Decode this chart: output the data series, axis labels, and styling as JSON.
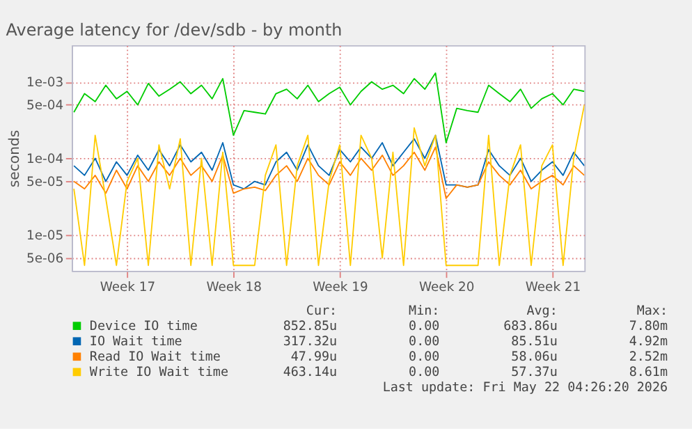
{
  "chart_data": {
    "type": "line",
    "title": "Average latency for /dev/sdb - by month",
    "ylabel": "seconds",
    "log": "y",
    "grid": true,
    "legend": "bottom",
    "categories": [
      null,
      null,
      null,
      null,
      null,
      "Week 17",
      null,
      null,
      null,
      null,
      null,
      null,
      null,
      null,
      null,
      "Week 18",
      null,
      null,
      null,
      null,
      null,
      null,
      null,
      null,
      null,
      "Week 19",
      null,
      null,
      null,
      null,
      null,
      null,
      null,
      null,
      null,
      "Week 20",
      null,
      null,
      null,
      null,
      null,
      null,
      null,
      null,
      null,
      "Week 21",
      null,
      null,
      null
    ],
    "ylim": [
      3.4e-06,
      0.003
    ],
    "yticks": [
      {
        "value": 5e-06,
        "label": "5e-06"
      },
      {
        "value": 1e-05,
        "label": "1e-05"
      },
      {
        "value": 5e-05,
        "label": "5e-05"
      },
      {
        "value": 0.0001,
        "label": "1e-04"
      },
      {
        "value": 0.0005,
        "label": "5e-04"
      },
      {
        "value": 0.001,
        "label": "1e-03"
      }
    ],
    "series": [
      {
        "name": "Device IO time",
        "color": "#00cc00",
        "values": [
          0.0004,
          0.0007,
          0.00055,
          0.0009,
          0.0006,
          0.00075,
          0.0005,
          0.00095,
          0.00065,
          0.0008,
          0.001,
          0.0007,
          0.0009,
          0.0006,
          0.0011,
          0.0002,
          0.00042,
          0.0004,
          0.00038,
          0.0007,
          0.0008,
          0.0006,
          0.0009,
          0.00055,
          0.0007,
          0.00085,
          0.0005,
          0.00075,
          0.001,
          0.0008,
          0.0009,
          0.0007,
          0.0011,
          0.0008,
          0.0013,
          0.00016,
          0.00045,
          0.00042,
          0.0004,
          0.0009,
          0.0007,
          0.00055,
          0.0008,
          0.00045,
          0.0006,
          0.0007,
          0.0005,
          0.0008,
          0.00075
        ]
      },
      {
        "name": "IO Wait time",
        "color": "#0066b3",
        "values": [
          8e-05,
          6e-05,
          0.0001,
          5e-05,
          9e-05,
          6e-05,
          0.00011,
          7e-05,
          0.00013,
          8e-05,
          0.00015,
          9e-05,
          0.00012,
          7e-05,
          0.00016,
          4.5e-05,
          4e-05,
          5e-05,
          4.5e-05,
          9e-05,
          0.00012,
          7e-05,
          0.00015,
          8e-05,
          6e-05,
          0.00013,
          9e-05,
          0.00014,
          0.0001,
          0.00016,
          8e-05,
          0.00012,
          0.00018,
          0.0001,
          0.0002,
          4.5e-05,
          4.5e-05,
          4.2e-05,
          4.5e-05,
          0.00013,
          8e-05,
          6e-05,
          0.0001,
          5e-05,
          7e-05,
          9e-05,
          6e-05,
          0.00012,
          8e-05
        ]
      },
      {
        "name": "Read IO Wait time",
        "color": "#ff8000",
        "values": [
          5e-05,
          4e-05,
          6e-05,
          3.5e-05,
          7e-05,
          4e-05,
          8e-05,
          5e-05,
          9e-05,
          6e-05,
          0.0001,
          6e-05,
          8e-05,
          5e-05,
          0.00011,
          3.5e-05,
          4e-05,
          4.2e-05,
          3.8e-05,
          6e-05,
          8e-05,
          5e-05,
          0.0001,
          6e-05,
          4.5e-05,
          9e-05,
          6e-05,
          0.0001,
          7e-05,
          0.00011,
          6e-05,
          8e-05,
          0.00012,
          7e-05,
          0.00014,
          3e-05,
          4.5e-05,
          4.2e-05,
          4.5e-05,
          9e-05,
          6e-05,
          4.5e-05,
          7e-05,
          4e-05,
          5e-05,
          6e-05,
          4.5e-05,
          8e-05,
          6e-05
        ]
      },
      {
        "name": "Write IO Wait time",
        "color": "#ffcc00",
        "values": [
          4e-05,
          4e-06,
          0.0002,
          3e-05,
          4e-06,
          5e-05,
          0.0001,
          4e-06,
          0.00015,
          4e-05,
          0.00018,
          4e-06,
          0.0001,
          4e-06,
          0.00012,
          4e-06,
          4e-06,
          4e-06,
          6e-05,
          0.00015,
          4e-06,
          8e-05,
          0.0002,
          4e-06,
          5e-05,
          0.00015,
          4e-06,
          0.0002,
          0.0001,
          5e-06,
          0.00012,
          4e-06,
          0.00025,
          8e-05,
          0.0002,
          4e-06,
          4e-06,
          4e-06,
          4e-06,
          0.0002,
          4e-06,
          6e-05,
          0.00015,
          4e-06,
          8e-05,
          0.00015,
          4e-06,
          0.0001,
          0.0005
        ]
      }
    ],
    "annotations": [
      "Cur:",
      "Min:",
      "Avg:",
      "Max:",
      "852.85u",
      "0.00",
      "683.86u",
      "7.80m",
      "317.32u",
      "0.00",
      "85.51u",
      "4.92m",
      "47.99u",
      "0.00",
      "58.06u",
      "2.52m",
      "463.14u",
      "0.00",
      "57.37u",
      "8.61m",
      "Last update: Fri May 22 04:26:20 2026"
    ]
  }
}
